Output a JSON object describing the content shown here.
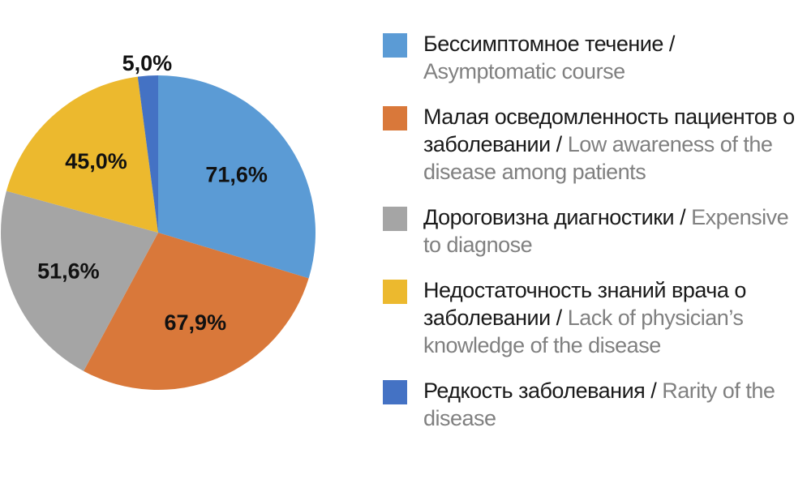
{
  "chart_data": {
    "type": "pie",
    "values": [
      71.6,
      67.9,
      51.6,
      45.0,
      5.0
    ],
    "data_labels": [
      "71,6%",
      "67,9%",
      "51,6%",
      "45,0%",
      "5,0%"
    ],
    "colors": [
      "#5b9bd5",
      "#d9783a",
      "#a5a5a5",
      "#ecb92e",
      "#4472c4"
    ],
    "start_angle_deg": 0,
    "direction": "clockwise",
    "legend_position": "right",
    "legend": [
      {
        "ru": "Бессимптомное течение / ",
        "en": "Asymptomatic course"
      },
      {
        "ru": "Малая осведомленность пациентов о заболевании / ",
        "en": "Low awareness of the disease among patients"
      },
      {
        "ru": "Дороговизна диагностики / ",
        "en": "Expensive to diagnose"
      },
      {
        "ru": "Недостаточность знаний врача о заболевании / ",
        "en": "Lack of physician’s knowledge of the disease"
      },
      {
        "ru": "Редкость заболевания / ",
        "en": "Rarity of the disease"
      }
    ]
  }
}
